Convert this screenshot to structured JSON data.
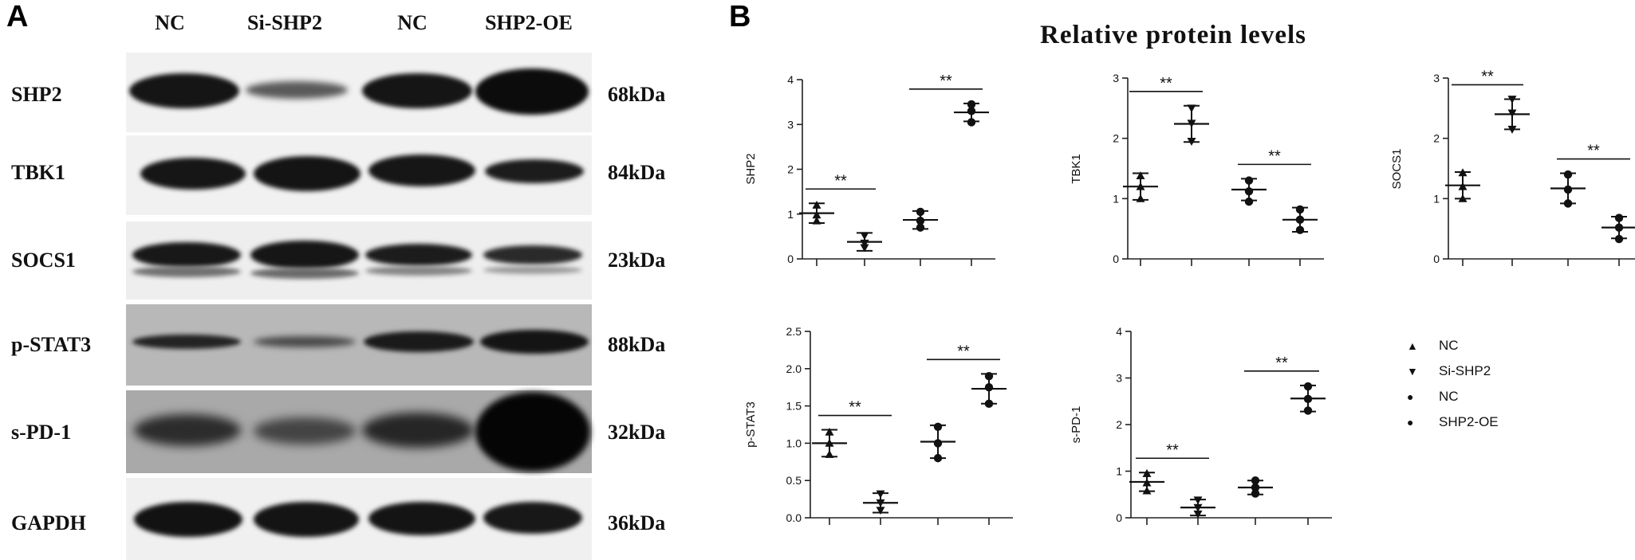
{
  "panel_a": {
    "letter": "A",
    "columns": [
      "NC",
      "Si-SHP2",
      "NC",
      "SHP2-OE"
    ],
    "rows": [
      {
        "name": "SHP2",
        "kda": "68kDa"
      },
      {
        "name": "TBK1",
        "kda": "84kDa"
      },
      {
        "name": "SOCS1",
        "kda": "23kDa"
      },
      {
        "name": "p-STAT3",
        "kda": "88kDa"
      },
      {
        "name": "s-PD-1",
        "kda": "32kDa"
      },
      {
        "name": "GAPDH",
        "kda": "36kDa"
      }
    ]
  },
  "panel_b": {
    "letter": "B",
    "title": "Relative protein levels"
  },
  "legend": [
    {
      "label": "NC",
      "marker": "triangle-up"
    },
    {
      "label": "Si-SHP2",
      "marker": "triangle-down"
    },
    {
      "label": "NC",
      "marker": "circle"
    },
    {
      "label": "SHP2-OE",
      "marker": "circle"
    }
  ],
  "significance_label": "**",
  "chart_data": [
    {
      "type": "scatter",
      "ylabel": "SHP2",
      "ylim": [
        0,
        4
      ],
      "yticks": [
        "0",
        "1",
        "2",
        "3",
        "4"
      ],
      "categories": [
        "NC",
        "Si-SHP2",
        "NC",
        "SHP2-OE"
      ],
      "means": [
        1.02,
        0.38,
        0.87,
        3.27
      ],
      "sd": [
        0.22,
        0.2,
        0.2,
        0.2
      ],
      "points": [
        [
          1.2,
          0.98,
          0.85
        ],
        [
          0.52,
          0.35,
          0.25
        ],
        [
          1.05,
          0.85,
          0.7
        ],
        [
          3.45,
          3.3,
          3.05
        ]
      ],
      "comparisons": [
        [
          0,
          1
        ],
        [
          2,
          3
        ]
      ]
    },
    {
      "type": "scatter",
      "ylabel": "TBK1",
      "ylim": [
        0,
        3
      ],
      "yticks": [
        "0",
        "1",
        "2",
        "3"
      ],
      "categories": [
        "NC",
        "Si-SHP2",
        "NC",
        "SHP2-OE"
      ],
      "means": [
        1.2,
        2.24,
        1.15,
        0.65
      ],
      "sd": [
        0.22,
        0.3,
        0.18,
        0.2
      ],
      "points": [
        [
          1.38,
          1.2,
          1.0
        ],
        [
          2.5,
          2.25,
          1.95
        ],
        [
          1.3,
          1.12,
          0.95
        ],
        [
          0.82,
          0.65,
          0.48
        ]
      ],
      "comparisons": [
        [
          0,
          1
        ],
        [
          2,
          3
        ]
      ]
    },
    {
      "type": "scatter",
      "ylabel": "SOCS1",
      "ylim": [
        0,
        3
      ],
      "yticks": [
        "0",
        "1",
        "2",
        "3"
      ],
      "categories": [
        "NC",
        "Si-SHP2",
        "NC",
        "SHP2-OE"
      ],
      "means": [
        1.22,
        2.4,
        1.17,
        0.52
      ],
      "sd": [
        0.22,
        0.25,
        0.25,
        0.18
      ],
      "points": [
        [
          1.43,
          1.2,
          1.0
        ],
        [
          2.65,
          2.42,
          2.15
        ],
        [
          1.4,
          1.15,
          0.92
        ],
        [
          0.68,
          0.52,
          0.33
        ]
      ],
      "comparisons": [
        [
          0,
          1
        ],
        [
          2,
          3
        ]
      ]
    },
    {
      "type": "scatter",
      "ylabel": "p-STAT3",
      "ylim": [
        0,
        2.5
      ],
      "yticks": [
        "0.0",
        "0.5",
        "1.0",
        "1.5",
        "2.0",
        "2.5"
      ],
      "categories": [
        "NC",
        "Si-SHP2",
        "NC",
        "SHP2-OE"
      ],
      "means": [
        1.0,
        0.2,
        1.02,
        1.73
      ],
      "sd": [
        0.18,
        0.13,
        0.22,
        0.2
      ],
      "points": [
        [
          1.15,
          1.0,
          0.85
        ],
        [
          0.32,
          0.2,
          0.1
        ],
        [
          1.22,
          1.0,
          0.8
        ],
        [
          1.9,
          1.75,
          1.53
        ]
      ],
      "comparisons": [
        [
          0,
          1
        ],
        [
          2,
          3
        ]
      ]
    },
    {
      "type": "scatter",
      "ylabel": "s-PD-1",
      "ylim": [
        0,
        4
      ],
      "yticks": [
        "0",
        "1",
        "2",
        "3",
        "4"
      ],
      "categories": [
        "NC",
        "Si-SHP2",
        "NC",
        "SHP2-OE"
      ],
      "means": [
        0.77,
        0.22,
        0.65,
        2.56
      ],
      "sd": [
        0.2,
        0.17,
        0.15,
        0.28
      ],
      "points": [
        [
          0.95,
          0.75,
          0.58
        ],
        [
          0.38,
          0.22,
          0.08
        ],
        [
          0.8,
          0.65,
          0.52
        ],
        [
          2.82,
          2.55,
          2.3
        ]
      ],
      "comparisons": [
        [
          0,
          1
        ],
        [
          2,
          3
        ]
      ]
    }
  ]
}
